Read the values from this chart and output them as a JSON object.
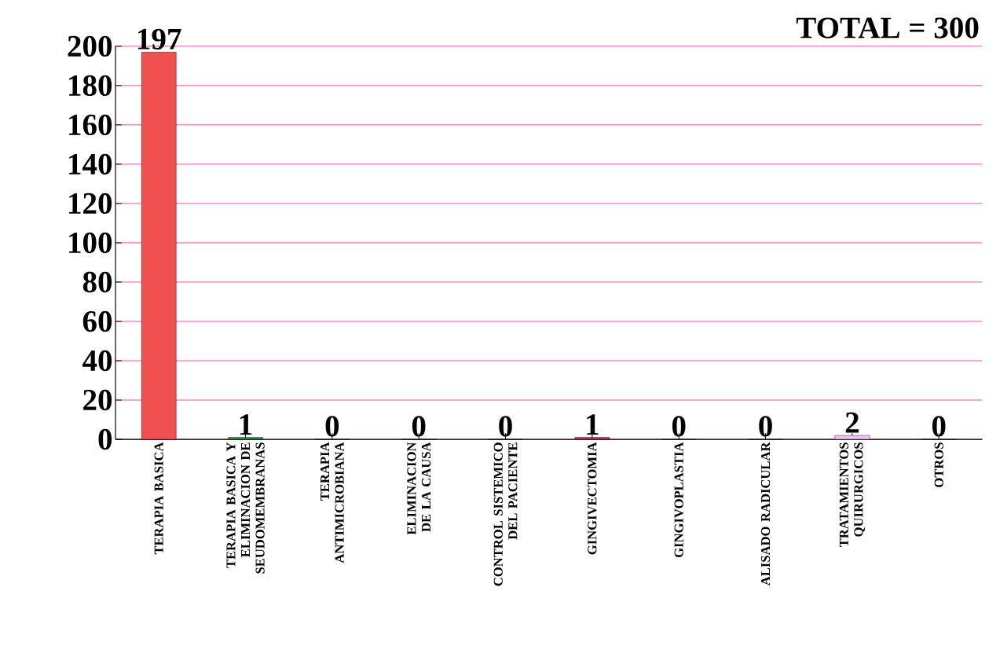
{
  "chart_data": {
    "type": "bar",
    "categories": [
      "TERAPIA BASICA",
      "TERAPIA BASICA Y ELIMINACION DE SEUDOMEMBRANAS",
      "TERAPIA ANTIMICROBIANA",
      "ELIMINACION DE LA CAUSA",
      "CONTROL SISTEMICO DEL PACIENTE",
      "GINGIVECTOMIA",
      "GINGIVOPLASTIA",
      "ALISADO RADICULAR",
      "TRATAMIENTOS QUIRURGICOS",
      "OTROS"
    ],
    "values": [
      197,
      1,
      0,
      0,
      0,
      1,
      0,
      0,
      2,
      0
    ],
    "colors": [
      "#f05050",
      "#2e8b3a",
      "#3030c0",
      "#f0e040",
      "#20a0f0",
      "#c03060",
      "#206030",
      "#2080a0",
      "#f0c0f0",
      "#20a0b0"
    ],
    "ylim": [
      0,
      200
    ],
    "yticks": [
      0,
      20,
      40,
      60,
      80,
      100,
      120,
      140,
      160,
      180,
      200
    ],
    "grid": "y",
    "data_labels": true,
    "annotations": [
      "TOTAL = 300"
    ]
  }
}
